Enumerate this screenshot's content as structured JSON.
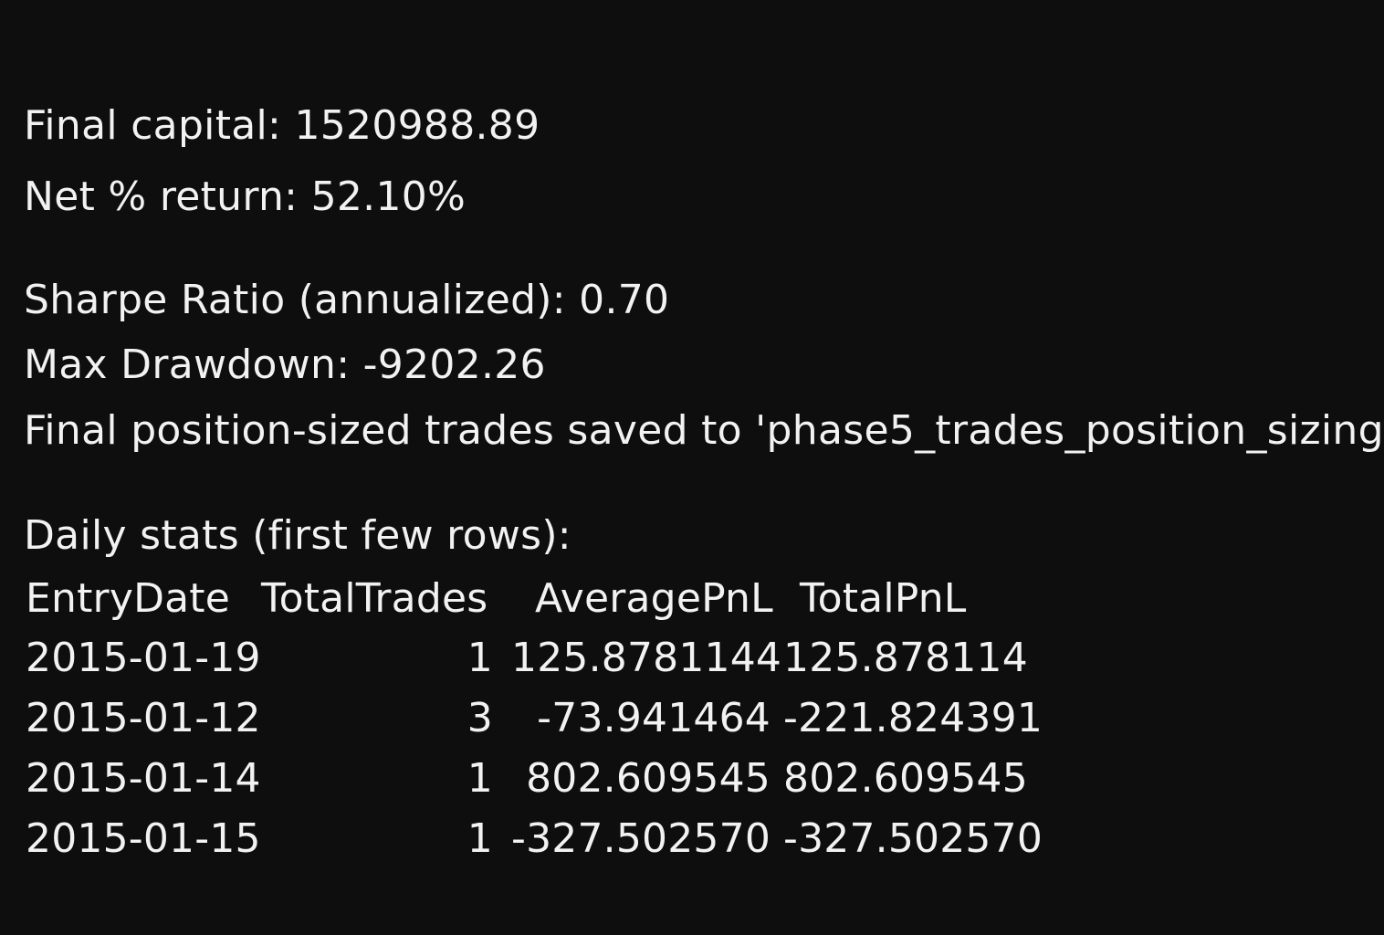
{
  "output": {
    "final_capital": "Final capital:  1520988.89",
    "net_return": "Net % return:  52.10%",
    "sharpe": "Sharpe Ratio (annualized): 0.70",
    "max_drawdown": "Max Drawdown: -9202.26",
    "saved_msg": "Final position-sized trades saved to 'phase5_trades_position_sizing",
    "daily_title": "Daily stats (first few rows):"
  },
  "table": {
    "headers": [
      "EntryDate",
      "TotalTrades",
      "AveragePnL",
      "TotalPnL"
    ],
    "rows": [
      [
        "2015-01-19",
        "1",
        "125.8781144",
        "125.878114"
      ],
      [
        "2015-01-12",
        "3",
        "-73.941464",
        "-221.824391"
      ],
      [
        "2015-01-14",
        "1",
        "802.609545",
        "802.609545"
      ],
      [
        "2015-01-15",
        "1",
        "-327.502570",
        "-327.502570"
      ]
    ]
  },
  "colors": {
    "background": "#0e0e0e",
    "text": "#f2f2f2"
  }
}
